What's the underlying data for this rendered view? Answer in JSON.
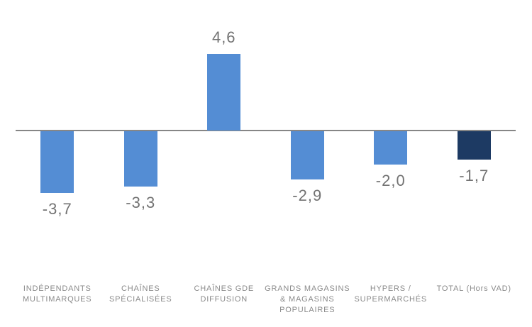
{
  "chart_data": {
    "type": "bar",
    "title": "",
    "xlabel": "",
    "ylabel": "",
    "grid": false,
    "legend": "none",
    "baseline": 0,
    "ylim": [
      -4.5,
      5.5
    ],
    "decimal_separator": ",",
    "categories": [
      "INDÉPENDANTS MULTIMARQUES",
      "CHAÎNES SPÉCIALISÉES",
      "CHAÎNES GDE DIFFUSION",
      "GRANDS MAGASINS & MAGASINS POPULAIRES",
      "HYPERS / SUPERMARCHÉS",
      "TOTAL (Hors VAD)"
    ],
    "category_lines": [
      [
        "INDÉPENDANTS",
        "MULTIMARQUES"
      ],
      [
        "CHAÎNES",
        "SPÉCIALISÉES"
      ],
      [
        "CHAÎNES GDE",
        "DIFFUSION"
      ],
      [
        "GRANDS MAGASINS",
        "& MAGASINS",
        "POPULAIRES"
      ],
      [
        "HYPERS /",
        "SUPERMARCHÉS"
      ],
      [
        "TOTAL (Hors VAD)"
      ]
    ],
    "values": [
      -3.7,
      -3.3,
      4.6,
      -2.9,
      -2.0,
      -1.7
    ],
    "value_labels": [
      "-3,7",
      "-3,3",
      "4,6",
      "-2,9",
      "-2,0",
      "-1,7"
    ],
    "bar_colors": [
      "#548DD4",
      "#548DD4",
      "#548DD4",
      "#548DD4",
      "#548DD4",
      "#1D3A63"
    ],
    "colors": {
      "bar_blue": "#548DD4",
      "bar_navy": "#1D3A63",
      "axis_line": "#868686",
      "value_label": "#737373",
      "category_label": "#8A8A8A",
      "background": "#FFFFFF"
    }
  }
}
